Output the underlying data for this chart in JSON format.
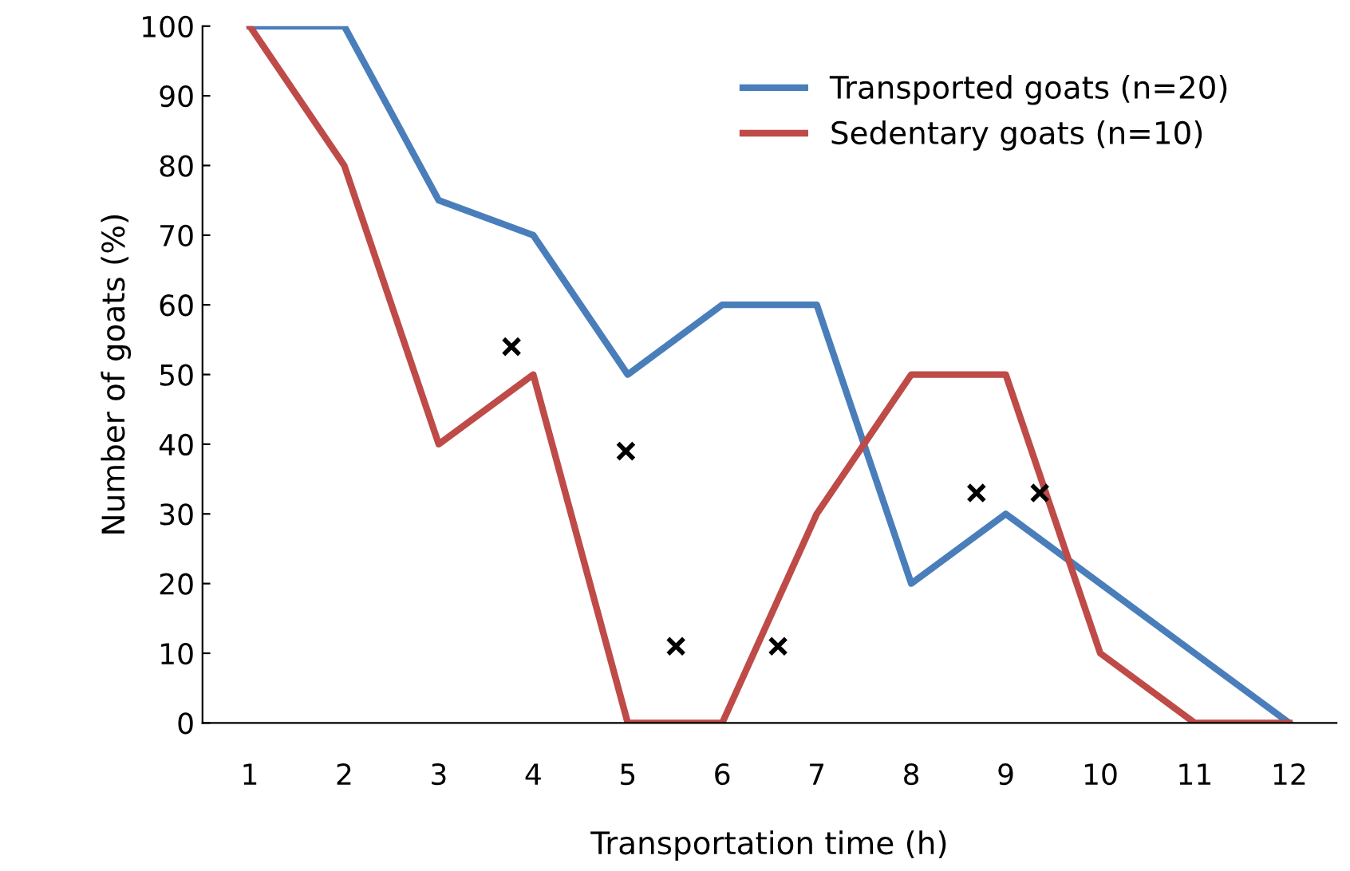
{
  "chart_data": {
    "type": "line",
    "xlabel": "Transportation time (h)",
    "ylabel": "Number of goats (%)",
    "xlim": [
      0.5,
      12.5
    ],
    "xticks": [
      1,
      2,
      3,
      4,
      5,
      6,
      7,
      8,
      9,
      10,
      11,
      12
    ],
    "ylim": [
      0,
      100
    ],
    "yticks": [
      0,
      10,
      20,
      30,
      40,
      50,
      60,
      70,
      80,
      90,
      100
    ],
    "x": [
      1,
      2,
      3,
      4,
      5,
      6,
      7,
      8,
      9,
      10,
      11,
      12
    ],
    "series": [
      {
        "name": "Transported goats (n=20)",
        "color": "#4a7ebb",
        "values": [
          100,
          100,
          75,
          70,
          50,
          60,
          60,
          20,
          30,
          20,
          10,
          0
        ]
      },
      {
        "name": "Sedentary goats (n=10)",
        "color": "#be4b48",
        "values": [
          100,
          80,
          40,
          50,
          0,
          0,
          30,
          50,
          50,
          10,
          0,
          0
        ]
      },
      {
        "type": "scatter",
        "color": "#000000",
        "marker": "cross",
        "x": [
          3.77,
          4.98,
          5.51,
          6.59,
          8.69,
          9.36
        ],
        "values": [
          54,
          39,
          11,
          11,
          33,
          33
        ]
      }
    ],
    "grid": false,
    "legend": "top right",
    "marker": "none",
    "line_style": "solid"
  }
}
